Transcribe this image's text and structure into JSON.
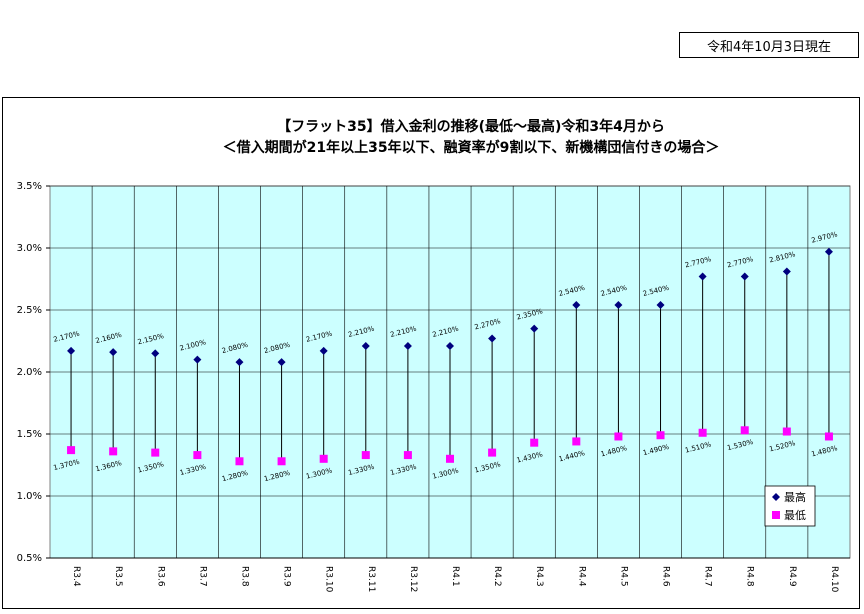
{
  "header": {
    "date_label": "令和4年10月3日現在"
  },
  "chart_data": {
    "type": "scatter",
    "title": "【フラット35】借入金利の推移(最低～最高)令和3年4月から",
    "subtitle": "＜借入期間が21年以上35年以下、融資率が9割以下、新機構団信付きの場合＞",
    "categories": [
      "R3.4",
      "R3.5",
      "R3.6",
      "R3.7",
      "R3.8",
      "R3.9",
      "R3.10",
      "R3.11",
      "R3.12",
      "R4.1",
      "R4.2",
      "R4.3",
      "R4.4",
      "R4.5",
      "R4.6",
      "R4.7",
      "R4.8",
      "R4.9",
      "R4.10"
    ],
    "ylim": [
      0.5,
      3.5
    ],
    "yticks": [
      "0.5%",
      "1.0%",
      "1.5%",
      "2.0%",
      "2.5%",
      "3.0%",
      "3.5%"
    ],
    "grid": true,
    "legend_position": "bottom-right",
    "series": [
      {
        "name": "最高",
        "color": "#00007f",
        "marker": "diamond",
        "values": [
          2.17,
          2.16,
          2.15,
          2.1,
          2.08,
          2.08,
          2.17,
          2.21,
          2.21,
          2.21,
          2.27,
          2.35,
          2.54,
          2.54,
          2.54,
          2.77,
          2.77,
          2.81,
          2.97
        ],
        "labels": [
          "2.170%",
          "2.160%",
          "2.150%",
          "2.100%",
          "2.080%",
          "2.080%",
          "2.170%",
          "2.210%",
          "2.210%",
          "2.210%",
          "2.270%",
          "2.350%",
          "2.540%",
          "2.540%",
          "2.540%",
          "2.770%",
          "2.770%",
          "2.810%",
          "2.970%"
        ]
      },
      {
        "name": "最低",
        "color": "#ff00ff",
        "marker": "square",
        "values": [
          1.37,
          1.36,
          1.35,
          1.33,
          1.28,
          1.28,
          1.3,
          1.33,
          1.33,
          1.3,
          1.35,
          1.43,
          1.44,
          1.48,
          1.49,
          1.51,
          1.53,
          1.52,
          1.48
        ],
        "labels": [
          "1.370%",
          "1.360%",
          "1.350%",
          "1.330%",
          "1.280%",
          "1.280%",
          "1.300%",
          "1.330%",
          "1.330%",
          "1.300%",
          "1.350%",
          "1.430%",
          "1.440%",
          "1.480%",
          "1.490%",
          "1.510%",
          "1.530%",
          "1.520%",
          "1.480%"
        ]
      }
    ],
    "plot_bg_color": "#ccffff",
    "range_line_color": "#000000"
  }
}
